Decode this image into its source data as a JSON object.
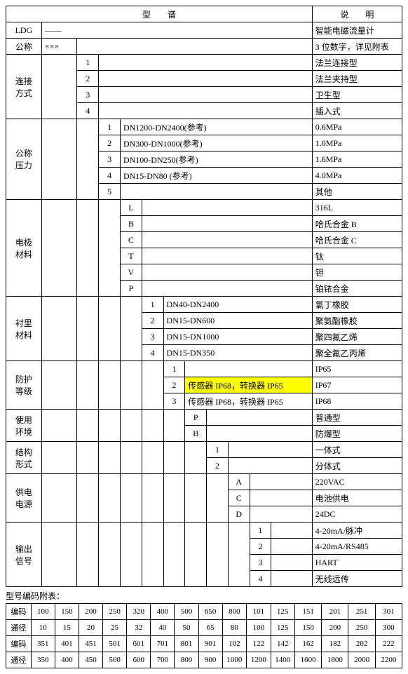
{
  "mainTable": {
    "header": {
      "col1": "型　　谱",
      "col2": "说　　明"
    },
    "rows": {
      "ldg": {
        "label": "LDG",
        "code": "——",
        "desc": "智能电磁流量计"
      },
      "nominal": {
        "label": "公称",
        "code": "×××",
        "desc": "3 位数字，详见附表"
      },
      "conn": {
        "label": "连接\n方式",
        "items": [
          {
            "code": "1",
            "desc": "法兰连接型"
          },
          {
            "code": "2",
            "desc": "法兰夹持型"
          },
          {
            "code": "3",
            "desc": "卫生型"
          },
          {
            "code": "4",
            "desc": "插入式"
          }
        ]
      },
      "pressure": {
        "label": "公称\n压力",
        "items": [
          {
            "code": "1",
            "detail": "DN1200-DN2400(参考)",
            "desc": "0.6MPa"
          },
          {
            "code": "2",
            "detail": "DN300-DN1000(参考)",
            "desc": "1.0MPa"
          },
          {
            "code": "3",
            "detail": "DN100-DN250(参考)",
            "desc": "1.6MPa"
          },
          {
            "code": "4",
            "detail": "DN15-DN80 (参考)",
            "desc": "4.0MPa"
          },
          {
            "code": "5",
            "detail": "",
            "desc": "其他"
          }
        ]
      },
      "electrode": {
        "label": "电极\n材料",
        "items": [
          {
            "code": "L",
            "desc": "316L"
          },
          {
            "code": "B",
            "desc": "哈氏合金 B"
          },
          {
            "code": "C",
            "desc": "哈氏合金 C"
          },
          {
            "code": "T",
            "desc": "钛"
          },
          {
            "code": "V",
            "desc": "钽"
          },
          {
            "code": "P",
            "desc": "铂铱合金"
          }
        ]
      },
      "lining": {
        "label": "衬里\n材料",
        "items": [
          {
            "code": "1",
            "detail": "DN40-DN2400",
            "desc": "氯丁橡胶"
          },
          {
            "code": "2",
            "detail": "DN15-DN600",
            "desc": "聚氨酯橡胶"
          },
          {
            "code": "3",
            "detail": "DN15-DN1000",
            "desc": "聚四氟乙烯"
          },
          {
            "code": "4",
            "detail": "DN15-DN350",
            "desc": "聚全氟乙丙烯"
          }
        ]
      },
      "protection": {
        "label": "防护\n等级",
        "items": [
          {
            "code": "1",
            "detail": "",
            "desc": "IP65",
            "highlight": false
          },
          {
            "code": "2",
            "detail": "传感器 IP68，转换器 IP65",
            "desc": "IP67",
            "highlight": true
          },
          {
            "code": "3",
            "detail": "传感器 IP68，转换器 IP65",
            "desc": "IP68",
            "highlight": false
          }
        ]
      },
      "env": {
        "label": "使用\n环境",
        "items": [
          {
            "code": "P",
            "desc": "普通型"
          },
          {
            "code": "B",
            "desc": "防爆型"
          }
        ]
      },
      "struct": {
        "label": "结构\n形式",
        "items": [
          {
            "code": "1",
            "desc": "一体式"
          },
          {
            "code": "2",
            "desc": "分体式"
          }
        ]
      },
      "power": {
        "label": "供电\n电源",
        "items": [
          {
            "code": "A",
            "desc": "220VAC"
          },
          {
            "code": "C",
            "desc": "电池供电"
          },
          {
            "code": "D",
            "desc": "24DC"
          }
        ]
      },
      "output": {
        "label": "输出\n信号",
        "items": [
          {
            "code": "1",
            "desc": "4-20mA/脉冲"
          },
          {
            "code": "2",
            "desc": "4-20mA/RS485"
          },
          {
            "code": "3",
            "desc": "HART"
          },
          {
            "code": "4",
            "desc": "无线远传"
          }
        ]
      }
    }
  },
  "appendix": {
    "label": "型号编码附表：",
    "rowLabels": [
      "编码",
      "通径",
      "编码",
      "通径"
    ],
    "rows": [
      [
        "100",
        "150",
        "200",
        "250",
        "320",
        "400",
        "500",
        "650",
        "800",
        "101",
        "125",
        "151",
        "201",
        "251",
        "301"
      ],
      [
        "10",
        "15",
        "20",
        "25",
        "32",
        "40",
        "50",
        "65",
        "80",
        "100",
        "125",
        "150",
        "200",
        "250",
        "300"
      ],
      [
        "351",
        "401",
        "451",
        "501",
        "601",
        "701",
        "801",
        "901",
        "102",
        "122",
        "142",
        "162",
        "182",
        "202",
        "222"
      ],
      [
        "350",
        "400",
        "450",
        "500",
        "600",
        "700",
        "800",
        "900",
        "1000",
        "1200",
        "1400",
        "1600",
        "1800",
        "2000",
        "2200"
      ]
    ]
  },
  "colors": {
    "highlight": "#ffff00",
    "border": "#000000",
    "background": "#ffffff",
    "text": "#000000"
  }
}
